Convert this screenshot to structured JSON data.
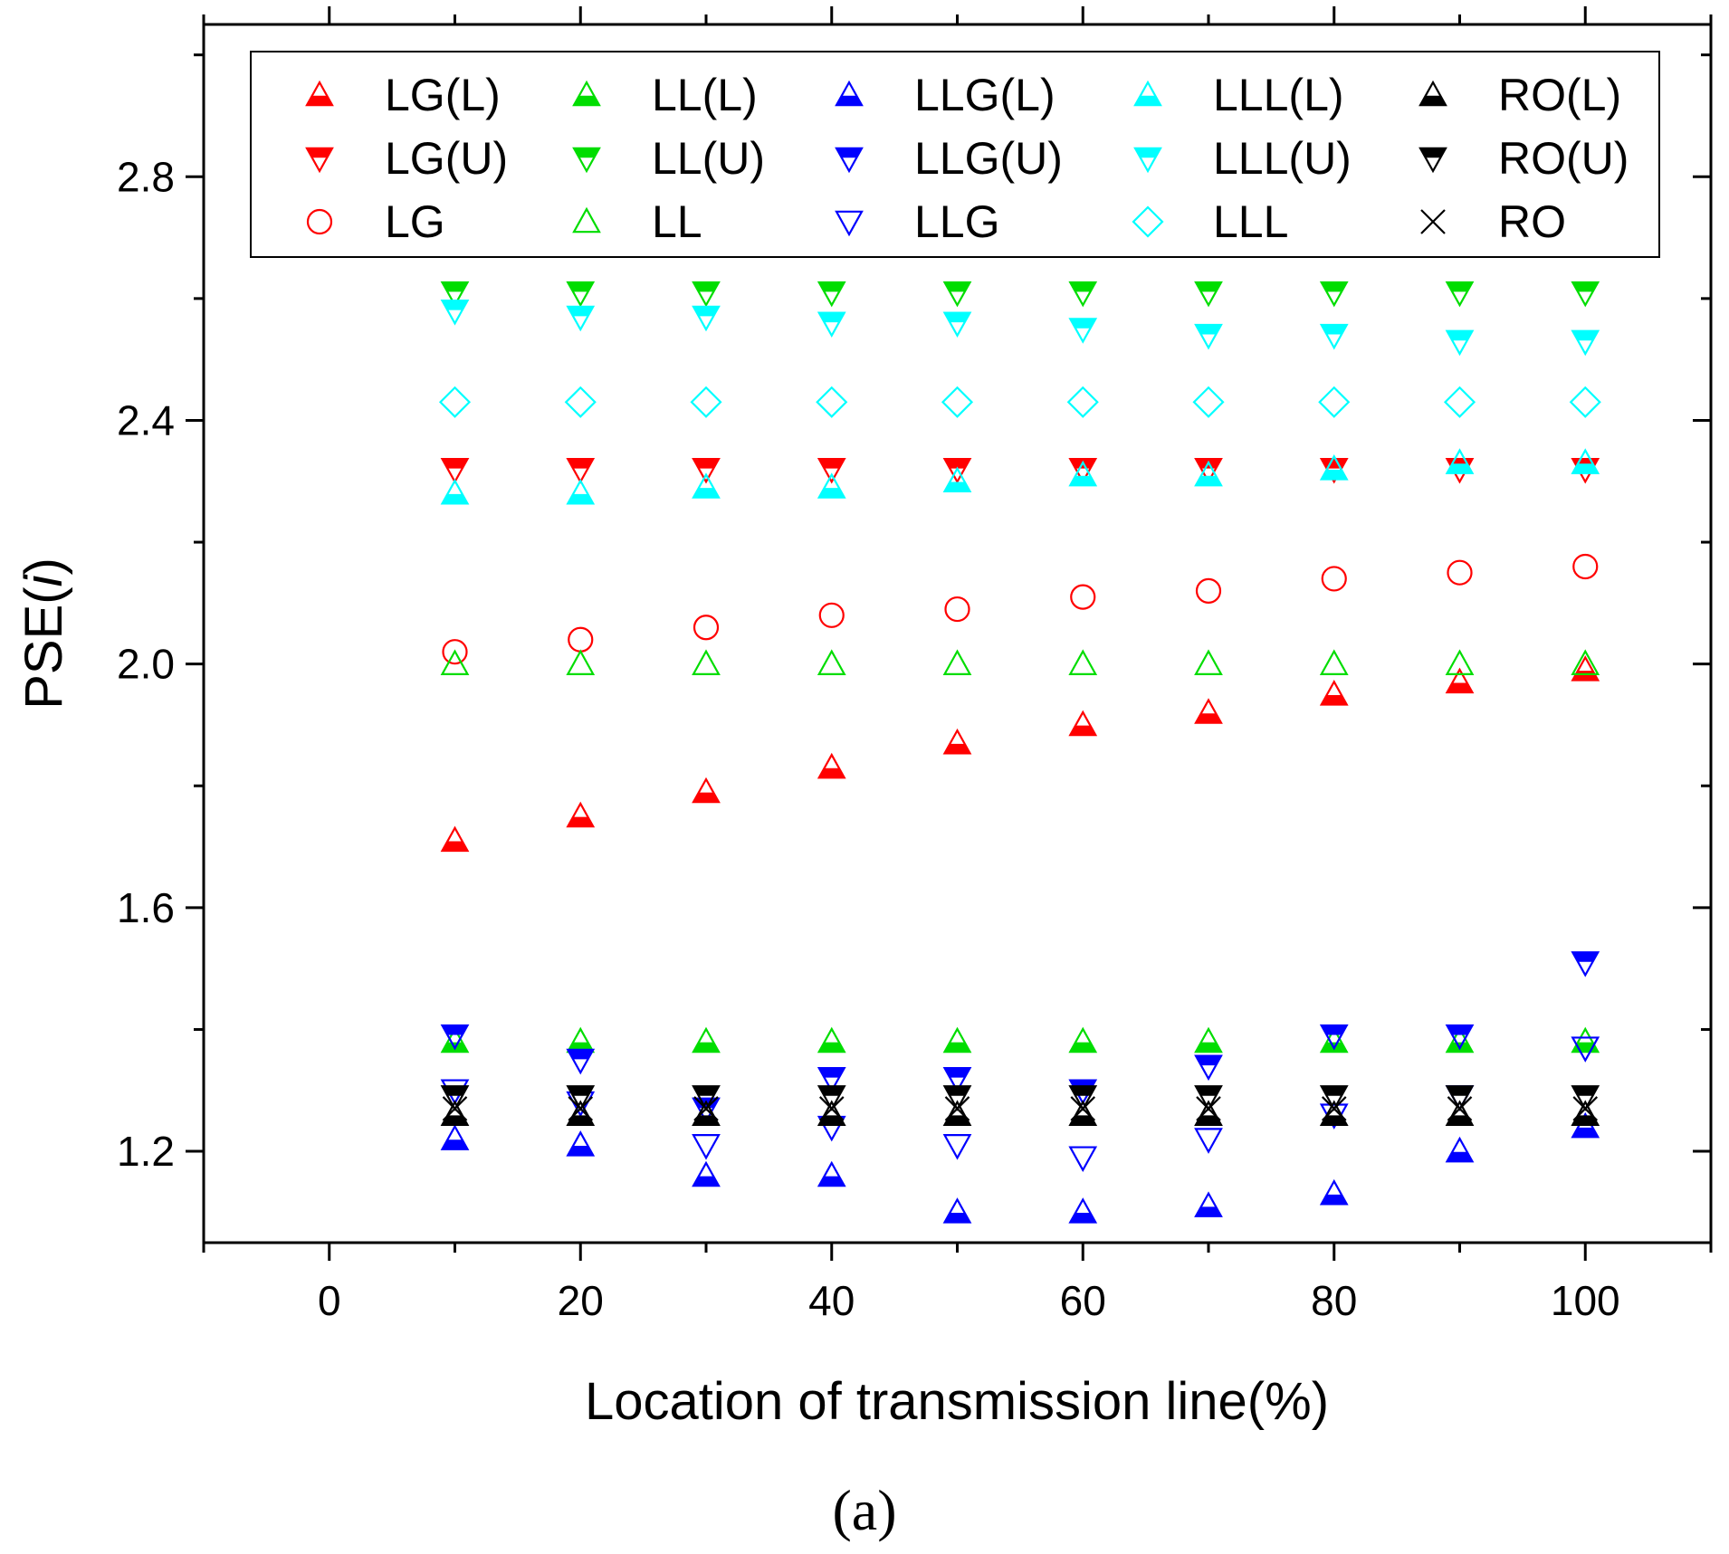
{
  "chart_data": {
    "type": "scatter",
    "title": "",
    "xlabel": "Location of transmission line(%)",
    "ylabel": "PSE(i)",
    "ylabel_prefix": "PSE(",
    "ylabel_italic": "i",
    "ylabel_suffix": ")",
    "caption": "(a)",
    "xlim": [
      -10,
      110
    ],
    "ylim": [
      1.05,
      3.05
    ],
    "x_ticks": [
      0,
      20,
      40,
      60,
      80,
      100
    ],
    "y_ticks": [
      1.2,
      1.6,
      2.0,
      2.4,
      2.8
    ],
    "y_tick_labels": [
      "1.2",
      "1.6",
      "2.0",
      "2.4",
      "2.8"
    ],
    "x": [
      10,
      20,
      30,
      40,
      50,
      60,
      70,
      80,
      90,
      100
    ],
    "legend_position": "top",
    "series": [
      {
        "name": "LG(L)",
        "color": "#ff0000",
        "marker": "triangle-up-filled",
        "values": [
          1.71,
          1.75,
          1.79,
          1.83,
          1.87,
          1.9,
          1.92,
          1.95,
          1.97,
          1.99
        ]
      },
      {
        "name": "LG(U)",
        "color": "#ff0000",
        "marker": "triangle-down-filled",
        "values": [
          2.32,
          2.32,
          2.32,
          2.32,
          2.32,
          2.32,
          2.32,
          2.32,
          2.32,
          2.32
        ]
      },
      {
        "name": "LG",
        "color": "#ff0000",
        "marker": "circle-open",
        "values": [
          2.02,
          2.04,
          2.06,
          2.08,
          2.09,
          2.11,
          2.12,
          2.14,
          2.15,
          2.16
        ]
      },
      {
        "name": "LL(L)",
        "color": "#00dd00",
        "marker": "triangle-up-filled",
        "values": [
          1.38,
          1.38,
          1.38,
          1.38,
          1.38,
          1.38,
          1.38,
          1.38,
          1.38,
          1.38
        ]
      },
      {
        "name": "LL(U)",
        "color": "#00dd00",
        "marker": "triangle-down-filled",
        "values": [
          2.61,
          2.61,
          2.61,
          2.61,
          2.61,
          2.61,
          2.61,
          2.61,
          2.61,
          2.61
        ]
      },
      {
        "name": "LL",
        "color": "#00dd00",
        "marker": "triangle-up-open",
        "values": [
          2.0,
          2.0,
          2.0,
          2.0,
          2.0,
          2.0,
          2.0,
          2.0,
          2.0,
          2.0
        ]
      },
      {
        "name": "LLG(L)",
        "color": "#0000ff",
        "marker": "triangle-up-filled",
        "values": [
          1.22,
          1.21,
          1.16,
          1.16,
          1.1,
          1.1,
          1.11,
          1.13,
          1.2,
          1.24
        ]
      },
      {
        "name": "LLG(U)",
        "color": "#0000ff",
        "marker": "triangle-down-filled",
        "values": [
          1.39,
          1.35,
          1.27,
          1.32,
          1.32,
          1.3,
          1.34,
          1.39,
          1.39,
          1.51
        ]
      },
      {
        "name": "LLG",
        "color": "#0000ff",
        "marker": "triangle-down-open",
        "values": [
          1.3,
          1.28,
          1.21,
          1.24,
          1.21,
          1.19,
          1.22,
          1.26,
          1.29,
          1.37
        ]
      },
      {
        "name": "LLL(L)",
        "color": "#00ffff",
        "marker": "triangle-up-filled",
        "values": [
          2.28,
          2.28,
          2.29,
          2.29,
          2.3,
          2.31,
          2.31,
          2.32,
          2.33,
          2.33
        ]
      },
      {
        "name": "LLL(U)",
        "color": "#00ffff",
        "marker": "triangle-down-filled",
        "values": [
          2.58,
          2.57,
          2.57,
          2.56,
          2.56,
          2.55,
          2.54,
          2.54,
          2.53,
          2.53
        ]
      },
      {
        "name": "LLL",
        "color": "#00ffff",
        "marker": "diamond-open",
        "values": [
          2.43,
          2.43,
          2.43,
          2.43,
          2.43,
          2.43,
          2.43,
          2.43,
          2.43,
          2.43
        ]
      },
      {
        "name": "RO(L)",
        "color": "#000000",
        "marker": "triangle-up-filled",
        "values": [
          1.26,
          1.26,
          1.26,
          1.26,
          1.26,
          1.26,
          1.26,
          1.26,
          1.26,
          1.26
        ]
      },
      {
        "name": "RO(U)",
        "color": "#000000",
        "marker": "triangle-down-filled",
        "values": [
          1.29,
          1.29,
          1.29,
          1.29,
          1.29,
          1.29,
          1.29,
          1.29,
          1.29,
          1.29
        ]
      },
      {
        "name": "RO",
        "color": "#000000",
        "marker": "x",
        "values": [
          1.27,
          1.27,
          1.27,
          1.27,
          1.27,
          1.27,
          1.27,
          1.27,
          1.27,
          1.27
        ]
      }
    ]
  }
}
